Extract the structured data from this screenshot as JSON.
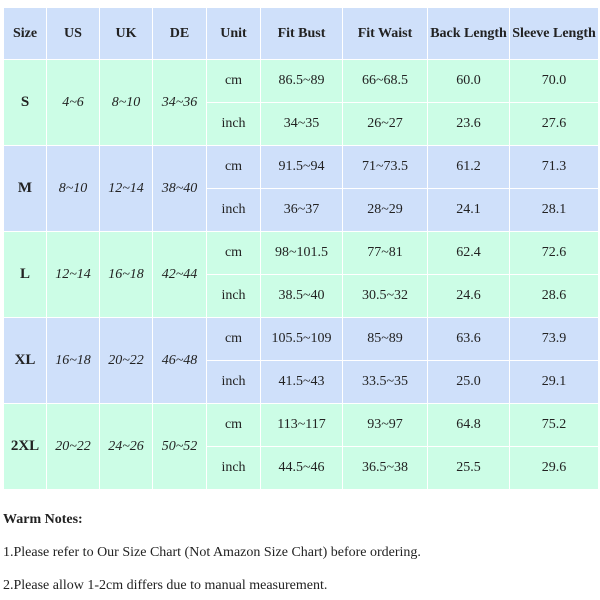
{
  "headers": [
    "Size",
    "US",
    "UK",
    "DE",
    "Unit",
    "Fit Bust",
    "Fit Waist",
    "Back Length",
    "Sleeve Length"
  ],
  "sizes": [
    {
      "size": "S",
      "us": "4~6",
      "uk": "8~10",
      "de": "34~36",
      "cm": [
        "86.5~89",
        "66~68.5",
        "60.0",
        "70.0"
      ],
      "inch": [
        "34~35",
        "26~27",
        "23.6",
        "27.6"
      ]
    },
    {
      "size": "M",
      "us": "8~10",
      "uk": "12~14",
      "de": "38~40",
      "cm": [
        "91.5~94",
        "71~73.5",
        "61.2",
        "71.3"
      ],
      "inch": [
        "36~37",
        "28~29",
        "24.1",
        "28.1"
      ]
    },
    {
      "size": "L",
      "us": "12~14",
      "uk": "16~18",
      "de": "42~44",
      "cm": [
        "98~101.5",
        "77~81",
        "62.4",
        "72.6"
      ],
      "inch": [
        "38.5~40",
        "30.5~32",
        "24.6",
        "28.6"
      ]
    },
    {
      "size": "XL",
      "us": "16~18",
      "uk": "20~22",
      "de": "46~48",
      "cm": [
        "105.5~109",
        "85~89",
        "63.6",
        "73.9"
      ],
      "inch": [
        "41.5~43",
        "33.5~35",
        "25.0",
        "29.1"
      ]
    },
    {
      "size": "2XL",
      "us": "20~22",
      "uk": "24~26",
      "de": "50~52",
      "cm": [
        "113~117",
        "93~97",
        "64.8",
        "75.2"
      ],
      "inch": [
        "44.5~46",
        "36.5~38",
        "25.5",
        "29.6"
      ]
    }
  ],
  "units": {
    "cm": "cm",
    "inch": "inch"
  },
  "notes": {
    "title": "Warm Notes:",
    "items": [
      "1.Please refer to Our Size Chart (Not Amazon Size Chart) before ordering.",
      "2.Please allow 1-2cm differs due to manual measurement."
    ]
  },
  "colors": {
    "header": "#cfe0fa",
    "green": "#ccfde6",
    "blue": "#cfe0fa"
  }
}
